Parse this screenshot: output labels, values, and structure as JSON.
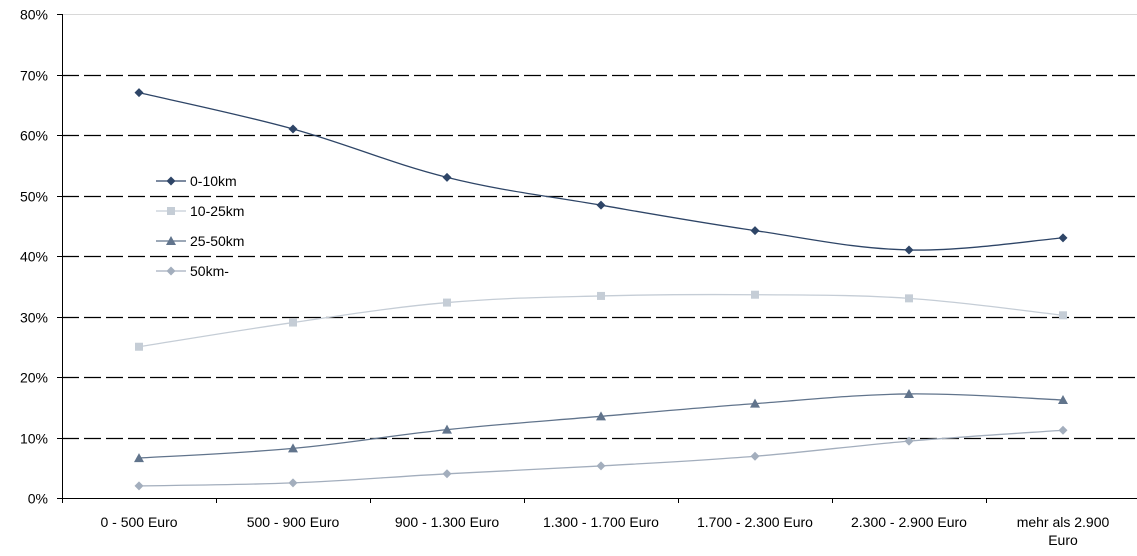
{
  "chart_data": {
    "type": "line",
    "categories": [
      "0 - 500 Euro",
      "500 - 900 Euro",
      "900 - 1.300 Euro",
      "1.300 - 1.700 Euro",
      "1.700 - 2.300 Euro",
      "2.300 - 2.900 Euro",
      "mehr als 2.900 Euro"
    ],
    "category_label_lines": [
      [
        "0 - 500 Euro"
      ],
      [
        "500 - 900 Euro"
      ],
      [
        "900 - 1.300 Euro"
      ],
      [
        "1.300 - 1.700 Euro"
      ],
      [
        "1.700 - 2.300 Euro"
      ],
      [
        "2.300 - 2.900 Euro"
      ],
      [
        "mehr als 2.900",
        "Euro"
      ]
    ],
    "series": [
      {
        "name": "0-10km",
        "color": "#2E4567",
        "marker": "diamond",
        "values": [
          67,
          61,
          53,
          48.4,
          44.2,
          41,
          43
        ]
      },
      {
        "name": "10-25km",
        "color": "#C5CDD6",
        "marker": "square",
        "values": [
          25,
          29,
          32.3,
          33.4,
          33.6,
          33,
          30.2
        ]
      },
      {
        "name": "25-50km",
        "color": "#61748C",
        "marker": "triangle",
        "values": [
          6.6,
          8.2,
          11.3,
          13.5,
          15.6,
          17.2,
          16.2
        ]
      },
      {
        "name": "50km-",
        "color": "#A3AEBD",
        "marker": "diamond",
        "values": [
          2,
          2.5,
          4,
          5.3,
          6.9,
          9.4,
          11.2
        ]
      }
    ],
    "yticks": [
      "0%",
      "10%",
      "20%",
      "30%",
      "40%",
      "50%",
      "60%",
      "70%",
      "80%"
    ],
    "ylim": [
      0,
      80
    ],
    "grid": "dashed horizontal",
    "legend_position": "inside left"
  }
}
